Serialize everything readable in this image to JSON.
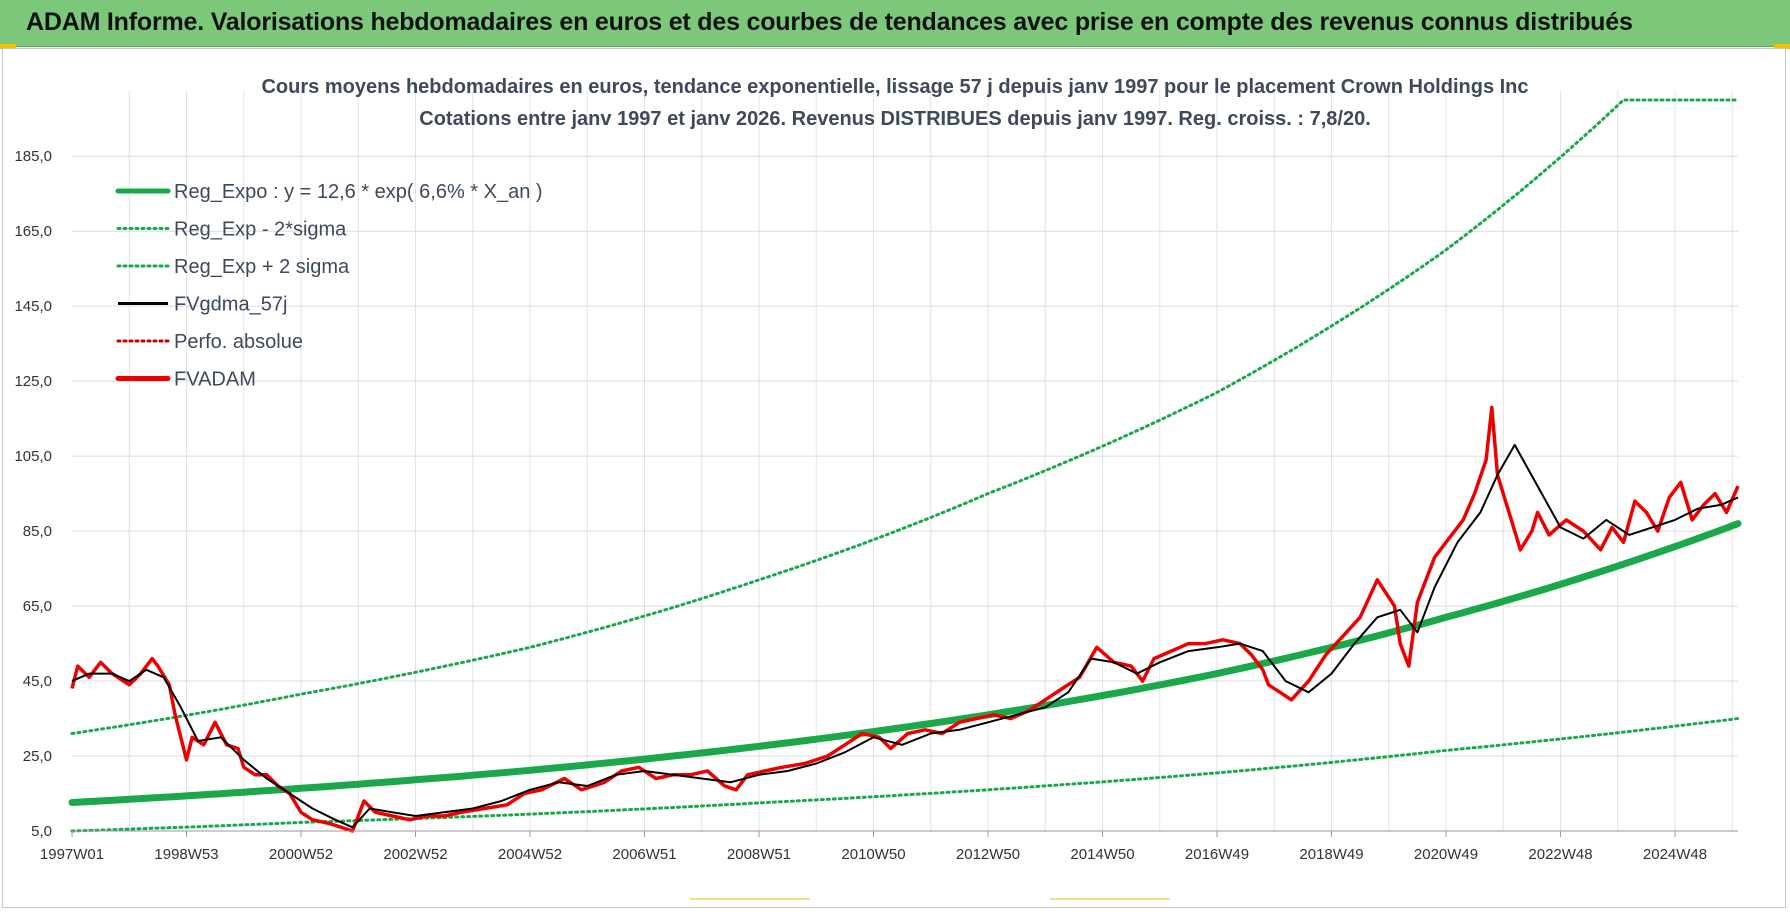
{
  "header": {
    "title": "ADAM Informe. Valorisations hebdomadaires en euros et des courbes de tendances avec prise en compte des revenus connus distribués"
  },
  "colors": {
    "header_bg": "#7cc87a",
    "reg_expo": "#1aa84a",
    "sigma_bands": "#1aa84a",
    "fvgdma": "#000000",
    "fvadam": "#ee0000",
    "perfo": "#cc0000"
  },
  "chart_data": {
    "type": "line",
    "title": "Cours moyens hebdomadaires en euros, tendance exponentielle, lissage 57 j depuis janv 1997 pour le placement Crown Holdings Inc",
    "subtitle": "Cotations entre janv 1997 et janv 2026. Revenus DISTRIBUES depuis janv 1997. Reg. croiss. : 7,8/20.",
    "xlabel": "",
    "ylabel": "",
    "x_ticks": [
      "1997W01",
      "1998W53",
      "2000W52",
      "2002W52",
      "2004W52",
      "2006W51",
      "2008W51",
      "2010W50",
      "2012W50",
      "2014W50",
      "2016W49",
      "2018W49",
      "2020W49",
      "2022W48",
      "2024W48"
    ],
    "y_ticks": [
      "5,0",
      "25,0",
      "45,0",
      "65,0",
      "85,0",
      "105,0",
      "125,0",
      "145,0",
      "165,0",
      "185,0"
    ],
    "ylim": [
      5,
      200
    ],
    "xlim": [
      1997.0,
      2026.1
    ],
    "grid": true,
    "legend_position": "top-left",
    "legend": [
      {
        "label": "Reg_Expo : y = 12,6 * exp( 6,6% *  X_an )",
        "style": "thick-solid",
        "color": "#1aa84a"
      },
      {
        "label": "Reg_Exp - 2*sigma",
        "style": "dotted",
        "color": "#1aa84a"
      },
      {
        "label": "Reg_Exp + 2 sigma",
        "style": "dotted",
        "color": "#1aa84a"
      },
      {
        "label": "FVgdma_57j",
        "style": "solid",
        "color": "#000000"
      },
      {
        "label": "Perfo. absolue",
        "style": "dotted",
        "color": "#cc0000"
      },
      {
        "label": "FVADAM",
        "style": "thick-solid",
        "color": "#ee0000"
      }
    ],
    "series": [
      {
        "name": "Reg_Expo : y = 12,6 * exp( 6,6% *  X_an )",
        "x": [
          1997.0,
          2001.0,
          2005.0,
          2009.0,
          2013.0,
          2017.0,
          2021.0,
          2026.1
        ],
        "y": [
          12.6,
          16.4,
          21.2,
          27.6,
          36.0,
          47.0,
          62.0,
          87.0
        ]
      },
      {
        "name": "Reg_Exp - 2*sigma",
        "x": [
          1997.0,
          2001.0,
          2005.0,
          2009.0,
          2013.0,
          2017.0,
          2021.0,
          2026.1
        ],
        "y": [
          5.0,
          7.3,
          9.5,
          12.5,
          16.0,
          20.5,
          26.5,
          35.0
        ]
      },
      {
        "name": "Reg_Exp + 2 sigma",
        "x": [
          1997.0,
          2001.0,
          2005.0,
          2009.0,
          2013.0,
          2017.0,
          2021.0,
          2024.1,
          2026.1
        ],
        "y": [
          31.0,
          41.5,
          54.0,
          72.0,
          95.0,
          122.0,
          160.0,
          200.0,
          200.0
        ]
      },
      {
        "name": "FVADAM",
        "x": [
          1997.0,
          1997.1,
          1997.3,
          1997.5,
          1997.7,
          1997.9,
          1998.0,
          1998.2,
          1998.4,
          1998.5,
          1998.7,
          1998.8,
          1999.0,
          1999.1,
          1999.3,
          1999.5,
          1999.7,
          1999.9,
          2000.0,
          2000.2,
          2000.4,
          2000.6,
          2000.8,
          2001.0,
          2001.2,
          2001.5,
          2001.7,
          2001.9,
          2002.1,
          2002.3,
          2002.6,
          2002.9,
          2003.2,
          2003.5,
          2003.8,
          2004.2,
          2004.6,
          2004.9,
          2005.2,
          2005.6,
          2005.9,
          2006.3,
          2006.6,
          2006.9,
          2007.2,
          2007.5,
          2007.8,
          2008.1,
          2008.4,
          2008.6,
          2008.8,
          2009.1,
          2009.4,
          2009.8,
          2010.2,
          2010.5,
          2010.8,
          2011.1,
          2011.3,
          2011.6,
          2011.9,
          2012.2,
          2012.5,
          2012.8,
          2013.1,
          2013.4,
          2013.7,
          2014.0,
          2014.3,
          2014.6,
          2014.9,
          2015.2,
          2015.5,
          2015.7,
          2015.9,
          2016.2,
          2016.5,
          2016.8,
          2017.1,
          2017.4,
          2017.6,
          2017.8,
          2017.9,
          2018.1,
          2018.3,
          2018.6,
          2018.9,
          2019.2,
          2019.5,
          2019.8,
          2020.1,
          2020.2,
          2020.35,
          2020.5,
          2020.8,
          2021.0,
          2021.3,
          2021.5,
          2021.7,
          2021.8,
          2021.9,
          2022.1,
          2022.3,
          2022.5,
          2022.6,
          2022.8,
          2023.1,
          2023.4,
          2023.7,
          2023.9,
          2024.1,
          2024.3,
          2024.5,
          2024.7,
          2024.9,
          2025.1,
          2025.3,
          2025.5,
          2025.7,
          2025.9,
          2026.1
        ],
        "y": [
          43,
          49,
          46,
          50,
          47,
          45,
          44,
          47,
          51,
          49,
          44,
          36,
          24,
          30,
          28,
          34,
          28,
          27,
          22,
          20,
          20,
          17,
          15,
          10,
          8,
          7,
          6,
          5,
          13,
          10,
          9,
          8,
          9,
          9,
          10,
          11,
          12,
          15,
          16,
          19,
          16,
          18,
          21,
          22,
          19,
          20,
          20,
          21,
          17,
          16,
          20,
          21,
          22,
          23,
          25,
          28,
          31,
          30,
          27,
          31,
          32,
          31,
          34,
          35,
          36,
          35,
          37,
          40,
          43,
          46,
          54,
          50,
          49,
          45,
          51,
          53,
          55,
          55,
          56,
          55,
          52,
          48,
          44,
          42,
          40,
          45,
          52,
          57,
          62,
          72,
          65,
          55,
          49,
          66,
          78,
          82,
          88,
          95,
          104,
          118,
          100,
          90,
          80,
          85,
          90,
          84,
          88,
          85,
          80,
          86,
          82,
          93,
          90,
          85,
          94,
          98,
          88,
          92,
          95,
          90,
          97
        ]
      },
      {
        "name": "FVgdma_57j",
        "x": [
          1997.0,
          1997.3,
          1997.7,
          1998.0,
          1998.3,
          1998.6,
          1998.9,
          1999.2,
          1999.6,
          2000.0,
          2000.4,
          2000.8,
          2001.2,
          2001.6,
          2001.9,
          2002.2,
          2002.6,
          2003.0,
          2003.5,
          2004.0,
          2004.5,
          2005.0,
          2005.5,
          2006.0,
          2006.5,
          2007.0,
          2007.5,
          2008.0,
          2008.5,
          2009.0,
          2009.5,
          2010.0,
          2010.5,
          2011.0,
          2011.5,
          2012.0,
          2012.5,
          2013.0,
          2013.5,
          2014.0,
          2014.4,
          2014.8,
          2015.2,
          2015.6,
          2016.0,
          2016.5,
          2017.0,
          2017.4,
          2017.8,
          2018.2,
          2018.6,
          2019.0,
          2019.4,
          2019.8,
          2020.2,
          2020.5,
          2020.8,
          2021.2,
          2021.6,
          2021.9,
          2022.2,
          2022.6,
          2023.0,
          2023.4,
          2023.8,
          2024.2,
          2024.6,
          2025.0,
          2025.4,
          2025.8,
          2026.1
        ],
        "y": [
          45,
          47,
          47,
          45,
          48,
          46,
          38,
          29,
          30,
          24,
          19,
          15,
          11,
          8,
          6,
          11,
          10,
          9,
          10,
          11,
          13,
          16,
          18,
          17,
          20,
          21,
          20,
          19,
          18,
          20,
          21,
          23,
          26,
          30,
          28,
          31,
          32,
          34,
          36,
          38,
          42,
          51,
          50,
          47,
          50,
          53,
          54,
          55,
          53,
          45,
          42,
          47,
          55,
          62,
          64,
          58,
          70,
          82,
          90,
          100,
          108,
          97,
          86,
          83,
          88,
          84,
          86,
          88,
          91,
          92,
          94
        ]
      }
    ]
  }
}
